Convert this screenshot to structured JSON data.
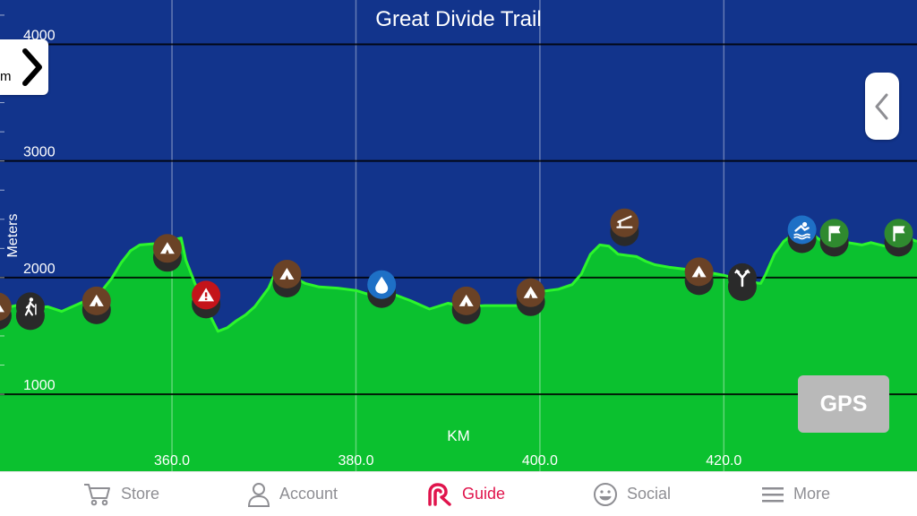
{
  "title": "Great Divide Trail",
  "side_tab": {
    "unit_label": "m"
  },
  "gps_button": "GPS",
  "colors": {
    "sky": "#12348c",
    "terrain": "#0bc12f",
    "terrain_line": "#2cf52c",
    "gridline": "#000000",
    "tab_active": "#e0144c",
    "tab_inactive": "#8e8e93"
  },
  "tabs": [
    {
      "label": "Store",
      "icon": "cart-icon",
      "active": false
    },
    {
      "label": "Account",
      "icon": "person-icon",
      "active": false
    },
    {
      "label": "Guide",
      "icon": "guide-logo-icon",
      "active": true
    },
    {
      "label": "Social",
      "icon": "smiley-icon",
      "active": false
    },
    {
      "label": "More",
      "icon": "menu-icon",
      "active": false
    }
  ],
  "chart_data": {
    "type": "area",
    "title": "Great Divide Trail",
    "xlabel": "KM",
    "ylabel": "Meters",
    "xlim": [
      341.3,
      441.0
    ],
    "ylim": [
      340,
      4380
    ],
    "x_ticks": [
      "360.0",
      "380.0",
      "400.0",
      "420.0"
    ],
    "y_ticks": [
      "1000",
      "2000",
      "3000",
      "4000"
    ],
    "grid": true,
    "series": [
      {
        "x": [
          341.3,
          343.0,
          345.0,
          346.5,
          348.0,
          350.0,
          352.0,
          353.5,
          354.5,
          355.5,
          356.5,
          358.0,
          359.5,
          360.5,
          361.0,
          361.5,
          362.5,
          363.5,
          364.3,
          365.0,
          366.0,
          367.0,
          368.0,
          369.0,
          370.5,
          371.5,
          372.5,
          373.5,
          374.5,
          376.0,
          378.0,
          380.0,
          382.0,
          384.0,
          386.0,
          388.0,
          390.0,
          392.0,
          394.0,
          396.0,
          398.0,
          400.0,
          402.0,
          403.5,
          404.5,
          405.5,
          406.5,
          407.5,
          408.5,
          409.5,
          410.5,
          411.5,
          412.5,
          414.0,
          416.0,
          418.0,
          420.0,
          421.0,
          422.0,
          423.0,
          424.0,
          424.5,
          425.5,
          426.5,
          427.5,
          429.0,
          430.0,
          431.0,
          432.0,
          433.5,
          435.0,
          436.0,
          437.5,
          439.0,
          440.0,
          441.0
        ],
        "y": [
          1730,
          1760,
          1740,
          1750,
          1710,
          1780,
          1850,
          2000,
          2130,
          2230,
          2280,
          2290,
          2260,
          2330,
          2340,
          2150,
          1950,
          1800,
          1650,
          1540,
          1570,
          1630,
          1680,
          1750,
          1910,
          2090,
          2100,
          1990,
          1950,
          1920,
          1910,
          1890,
          1840,
          1860,
          1800,
          1730,
          1780,
          1750,
          1760,
          1760,
          1760,
          1880,
          1900,
          1940,
          2030,
          2200,
          2280,
          2270,
          2200,
          2190,
          2180,
          2140,
          2110,
          2090,
          2070,
          2050,
          2020,
          2000,
          2010,
          1960,
          1950,
          2020,
          2200,
          2310,
          2370,
          2390,
          2350,
          2290,
          2350,
          2300,
          2280,
          2300,
          2270,
          2290,
          2340,
          2310
        ]
      }
    ],
    "markers": [
      {
        "km": 341.0,
        "elev": 1750,
        "icon": "tent-icon",
        "color": "#6a4226"
      },
      {
        "km": 344.6,
        "elev": 1750,
        "icon": "hiker-icon",
        "color": "#2a2a2a"
      },
      {
        "km": 351.8,
        "elev": 1800,
        "icon": "tent-icon",
        "color": "#6a4226"
      },
      {
        "km": 359.5,
        "elev": 2250,
        "icon": "tent-icon",
        "color": "#6a4226"
      },
      {
        "km": 363.7,
        "elev": 1850,
        "icon": "warning-icon",
        "color": "#c4141a"
      },
      {
        "km": 372.5,
        "elev": 2030,
        "icon": "tent-icon",
        "color": "#6a4226"
      },
      {
        "km": 382.8,
        "elev": 1940,
        "icon": "water-drop-icon",
        "color": "#1e70c6"
      },
      {
        "km": 392.0,
        "elev": 1800,
        "icon": "tent-icon",
        "color": "#6a4226"
      },
      {
        "km": 399.0,
        "elev": 1870,
        "icon": "tent-icon",
        "color": "#6a4226"
      },
      {
        "km": 409.2,
        "elev": 2470,
        "icon": "shelter-icon",
        "color": "#6a4226"
      },
      {
        "km": 417.3,
        "elev": 2050,
        "icon": "tent-icon",
        "color": "#6a4226"
      },
      {
        "km": 422.0,
        "elev": 2000,
        "icon": "trail-junction-icon",
        "color": "#2a2a2a"
      },
      {
        "km": 428.5,
        "elev": 2410,
        "icon": "swimming-icon",
        "color": "#1e70c6"
      },
      {
        "km": 432.0,
        "elev": 2380,
        "icon": "flag-icon",
        "color": "#2f8a2f"
      },
      {
        "km": 439.0,
        "elev": 2380,
        "icon": "flag-icon",
        "color": "#2f8a2f"
      }
    ]
  }
}
